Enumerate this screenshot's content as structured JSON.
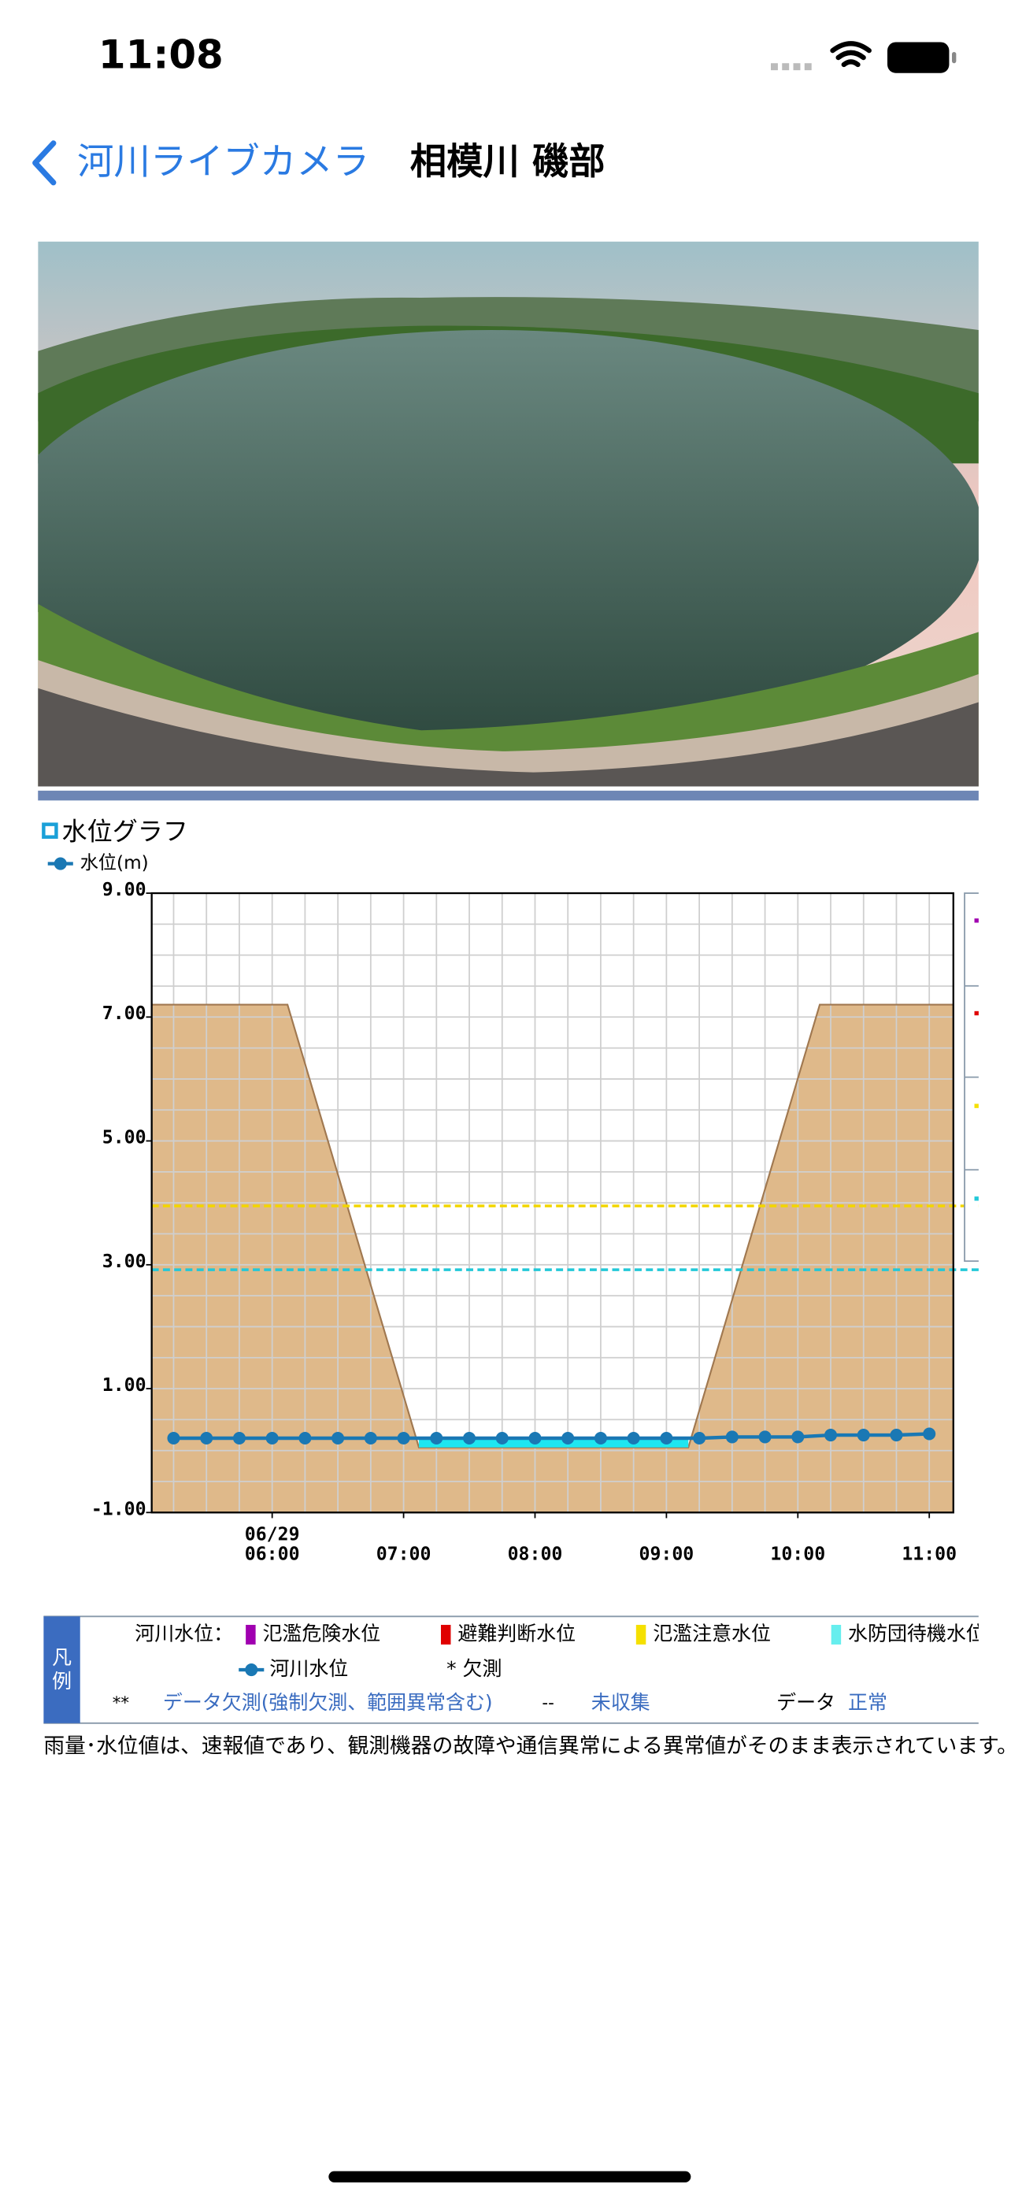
{
  "status": {
    "time": "11:08"
  },
  "nav": {
    "back": "河川ライブカメラ",
    "title": "相模川 磯部"
  },
  "graph": {
    "heading": "水位グラフ"
  },
  "chart_data": {
    "type": "line",
    "series": [
      {
        "name": "水位(m)",
        "color": "#1a78b4",
        "x": [
          "05:15",
          "05:30",
          "05:45",
          "06:00",
          "06:15",
          "06:30",
          "06:45",
          "07:00",
          "07:15",
          "07:30",
          "07:45",
          "08:00",
          "08:15",
          "08:30",
          "08:45",
          "09:00",
          "09:15",
          "09:30",
          "09:45",
          "10:00",
          "10:15",
          "10:30",
          "10:45",
          "11:00"
        ],
        "values": [
          0.2,
          0.2,
          0.2,
          0.2,
          0.2,
          0.2,
          0.2,
          0.2,
          0.2,
          0.2,
          0.2,
          0.2,
          0.2,
          0.2,
          0.2,
          0.2,
          0.2,
          0.22,
          0.22,
          0.22,
          0.25,
          0.25,
          0.25,
          0.27
        ]
      }
    ],
    "terrain": {
      "color": "#dfb98a",
      "edge": "#a07850",
      "x": [
        "05:05",
        "06:07",
        "07:07",
        "09:10",
        "10:10",
        "11:11"
      ],
      "values": [
        7.2,
        7.2,
        0.05,
        0.05,
        7.2,
        7.2
      ]
    },
    "water_color": "#1ee6f0",
    "thresholds": [
      {
        "value": 3.95,
        "color": "#f2d600"
      },
      {
        "value": 2.92,
        "color": "#22c8d8"
      }
    ],
    "xlim": [
      "05:05",
      "11:11"
    ],
    "xticks": [
      "06:00",
      "07:00",
      "08:00",
      "09:00",
      "10:00",
      "11:00"
    ],
    "date_label": "06/29",
    "ylim": [
      -1,
      9
    ],
    "yticks": [
      {
        "value": -1,
        "label": "-1.00"
      },
      {
        "value": 1,
        "label": "1.00"
      },
      {
        "value": 3,
        "label": "3.00"
      },
      {
        "value": 5,
        "label": "5.00"
      },
      {
        "value": 7,
        "label": "7.00"
      },
      {
        "value": 9,
        "label": "9.00"
      }
    ],
    "ygrid": [
      -0.5,
      0,
      0.5,
      1,
      1.5,
      2,
      2.5,
      3,
      3.5,
      4,
      4.5,
      5,
      5.5,
      6,
      6.5,
      7,
      7.5,
      8,
      8.5
    ],
    "xgrid": [
      "05:15",
      "05:30",
      "05:45",
      "06:00",
      "06:15",
      "06:30",
      "06:45",
      "07:00",
      "07:15",
      "07:30",
      "07:45",
      "08:00",
      "08:15",
      "08:30",
      "08:45",
      "09:00",
      "09:15",
      "09:30",
      "09:45",
      "10:00",
      "10:15",
      "10:30",
      "10:45",
      "11:00"
    ],
    "grid": true
  },
  "legend": {
    "label": "凡例",
    "heading": "河川水位：",
    "levels": [
      {
        "name": "氾濫危険水位",
        "color": "#a000b0"
      },
      {
        "name": "避難判断水位",
        "color": "#e00000"
      },
      {
        "name": "氾濫注意水位",
        "color": "#f5e000"
      },
      {
        "name": "水防団待機水位",
        "color": "#66eeee"
      }
    ],
    "river": "河川水位",
    "missing": "* 欠測",
    "codes": [
      {
        "code": "**",
        "text": "データ欠測(強制欠測、範囲異常含む)"
      },
      {
        "code": "--",
        "text": "未収集"
      },
      {
        "code": "データ",
        "text": "正常"
      }
    ]
  },
  "note": "雨量･水位値は、速報値であり、観測機器の故障や通信異常による異常値がそのまま表示されています。"
}
